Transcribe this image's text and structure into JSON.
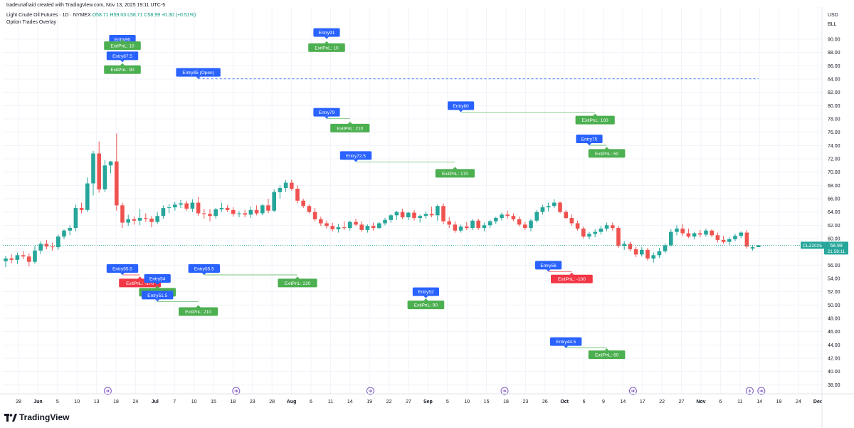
{
  "header": {
    "credit": "tradeunafraid created with TradingView.com, Nov 13, 2025 19:11 UTC-5",
    "symbol_desc": "Light Crude Oil Futures · 1D · NYMEX",
    "ohlc": {
      "o": "O58.71",
      "h": "H59.03",
      "l": "L58.71",
      "c": "C58.99",
      "chg": "+0.30 (+0.51%)"
    },
    "overlay_title": "Option Trades Overlay"
  },
  "axis": {
    "currency": "USD",
    "unit": "BLL",
    "y_ticks": [
      "90.00",
      "88.00",
      "86.00",
      "84.00",
      "82.00",
      "80.00",
      "78.00",
      "76.00",
      "74.00",
      "72.00",
      "70.00",
      "68.00",
      "66.00",
      "64.00",
      "62.00",
      "60.00",
      "58.00",
      "56.00",
      "54.00",
      "52.00",
      "50.00",
      "48.00",
      "46.00",
      "44.00",
      "42.00",
      "40.00",
      "38.00"
    ],
    "x_ticks": [
      "28",
      "Jun",
      "5",
      "10",
      "13",
      "18",
      "24",
      "Jul",
      "7",
      "10",
      "15",
      "18",
      "23",
      "28",
      "Aug",
      "6",
      "11",
      "14",
      "19",
      "22",
      "27",
      "Sep",
      "5",
      "10",
      "15",
      "18",
      "23",
      "26",
      "Oct",
      "6",
      "9",
      "14",
      "17",
      "22",
      "27",
      "Nov",
      "6",
      "11",
      "14",
      "19",
      "24",
      "Dec"
    ]
  },
  "price_badge": {
    "symbol": "CLZ2025",
    "price": "58.99",
    "countdown": "21:58:11"
  },
  "colors": {
    "up": "#26a69a",
    "down": "#ef5350",
    "entry": "#2962ff",
    "exit_win": "#4caf50",
    "exit_loss": "#f23645",
    "event": "#7e57c2"
  },
  "chart_data": {
    "type": "candlestick",
    "ylim": [
      37,
      92
    ],
    "last_price": 58.99,
    "candles": [
      {
        "o": 56.6,
        "h": 57.4,
        "l": 55.7,
        "c": 57.0
      },
      {
        "o": 57.0,
        "h": 57.6,
        "l": 56.3,
        "c": 56.8
      },
      {
        "o": 56.8,
        "h": 57.9,
        "l": 56.2,
        "c": 57.5
      },
      {
        "o": 57.5,
        "h": 58.1,
        "l": 56.9,
        "c": 57.3
      },
      {
        "o": 57.3,
        "h": 57.8,
        "l": 55.8,
        "c": 56.5
      },
      {
        "o": 56.5,
        "h": 58.9,
        "l": 56.2,
        "c": 58.2
      },
      {
        "o": 58.2,
        "h": 59.6,
        "l": 57.7,
        "c": 59.2
      },
      {
        "o": 59.2,
        "h": 59.8,
        "l": 58.4,
        "c": 58.8
      },
      {
        "o": 58.8,
        "h": 59.4,
        "l": 58.2,
        "c": 58.7
      },
      {
        "o": 58.7,
        "h": 60.6,
        "l": 58.3,
        "c": 60.3
      },
      {
        "o": 60.3,
        "h": 61.4,
        "l": 59.9,
        "c": 61.2
      },
      {
        "o": 61.2,
        "h": 62.0,
        "l": 60.5,
        "c": 61.6
      },
      {
        "o": 61.6,
        "h": 65.1,
        "l": 61.1,
        "c": 64.6
      },
      {
        "o": 64.6,
        "h": 65.4,
        "l": 63.8,
        "c": 64.3
      },
      {
        "o": 64.3,
        "h": 69.2,
        "l": 64.0,
        "c": 68.3
      },
      {
        "o": 68.3,
        "h": 73.2,
        "l": 66.5,
        "c": 72.8
      },
      {
        "o": 72.8,
        "h": 74.6,
        "l": 66.9,
        "c": 67.4
      },
      {
        "o": 67.4,
        "h": 71.8,
        "l": 67.0,
        "c": 71.0
      },
      {
        "o": 71.0,
        "h": 71.7,
        "l": 69.8,
        "c": 71.6
      },
      {
        "o": 71.6,
        "h": 75.8,
        "l": 64.2,
        "c": 65.0
      },
      {
        "o": 65.0,
        "h": 65.4,
        "l": 61.6,
        "c": 62.4
      },
      {
        "o": 62.4,
        "h": 63.6,
        "l": 61.9,
        "c": 62.9
      },
      {
        "o": 62.9,
        "h": 63.3,
        "l": 62.1,
        "c": 62.7
      },
      {
        "o": 62.7,
        "h": 64.5,
        "l": 62.0,
        "c": 63.1
      },
      {
        "o": 63.1,
        "h": 63.8,
        "l": 62.5,
        "c": 63.0
      },
      {
        "o": 63.0,
        "h": 63.4,
        "l": 61.7,
        "c": 62.5
      },
      {
        "o": 62.5,
        "h": 64.0,
        "l": 62.2,
        "c": 63.4
      },
      {
        "o": 63.4,
        "h": 65.0,
        "l": 63.0,
        "c": 64.6
      },
      {
        "o": 64.6,
        "h": 65.2,
        "l": 63.8,
        "c": 64.7
      },
      {
        "o": 64.7,
        "h": 65.5,
        "l": 64.2,
        "c": 65.1
      },
      {
        "o": 65.1,
        "h": 65.8,
        "l": 64.6,
        "c": 65.3
      },
      {
        "o": 65.3,
        "h": 65.7,
        "l": 64.2,
        "c": 64.5
      },
      {
        "o": 64.5,
        "h": 65.9,
        "l": 64.0,
        "c": 65.4
      },
      {
        "o": 65.4,
        "h": 66.3,
        "l": 63.4,
        "c": 63.8
      },
      {
        "o": 63.8,
        "h": 64.5,
        "l": 63.0,
        "c": 63.7
      },
      {
        "o": 63.7,
        "h": 64.4,
        "l": 62.6,
        "c": 63.4
      },
      {
        "o": 63.4,
        "h": 64.6,
        "l": 63.0,
        "c": 64.4
      },
      {
        "o": 64.4,
        "h": 65.4,
        "l": 64.0,
        "c": 64.6
      },
      {
        "o": 64.6,
        "h": 65.0,
        "l": 64.0,
        "c": 64.3
      },
      {
        "o": 64.3,
        "h": 64.7,
        "l": 63.3,
        "c": 63.7
      },
      {
        "o": 63.7,
        "h": 64.1,
        "l": 63.2,
        "c": 63.8
      },
      {
        "o": 63.8,
        "h": 64.3,
        "l": 63.2,
        "c": 63.6
      },
      {
        "o": 63.6,
        "h": 64.8,
        "l": 63.1,
        "c": 64.3
      },
      {
        "o": 64.3,
        "h": 65.0,
        "l": 63.5,
        "c": 63.8
      },
      {
        "o": 63.8,
        "h": 65.2,
        "l": 63.5,
        "c": 65.0
      },
      {
        "o": 65.0,
        "h": 66.0,
        "l": 63.8,
        "c": 64.2
      },
      {
        "o": 64.2,
        "h": 67.4,
        "l": 64.0,
        "c": 67.0
      },
      {
        "o": 67.0,
        "h": 68.0,
        "l": 66.0,
        "c": 67.6
      },
      {
        "o": 67.6,
        "h": 68.8,
        "l": 67.0,
        "c": 68.4
      },
      {
        "o": 68.4,
        "h": 68.9,
        "l": 67.2,
        "c": 67.5
      },
      {
        "o": 67.5,
        "h": 68.0,
        "l": 65.3,
        "c": 65.7
      },
      {
        "o": 65.7,
        "h": 66.0,
        "l": 64.6,
        "c": 64.9
      },
      {
        "o": 64.9,
        "h": 65.1,
        "l": 63.8,
        "c": 64.0
      },
      {
        "o": 64.0,
        "h": 64.6,
        "l": 62.6,
        "c": 62.9
      },
      {
        "o": 62.9,
        "h": 63.3,
        "l": 61.9,
        "c": 62.3
      },
      {
        "o": 62.3,
        "h": 62.7,
        "l": 61.5,
        "c": 61.9
      },
      {
        "o": 61.9,
        "h": 62.4,
        "l": 61.1,
        "c": 61.4
      },
      {
        "o": 61.4,
        "h": 62.2,
        "l": 60.9,
        "c": 61.7
      },
      {
        "o": 61.7,
        "h": 62.6,
        "l": 61.3,
        "c": 61.6
      },
      {
        "o": 61.6,
        "h": 62.7,
        "l": 61.2,
        "c": 62.5
      },
      {
        "o": 62.5,
        "h": 63.0,
        "l": 61.9,
        "c": 62.1
      },
      {
        "o": 62.1,
        "h": 62.6,
        "l": 61.0,
        "c": 61.3
      },
      {
        "o": 61.3,
        "h": 62.1,
        "l": 60.9,
        "c": 61.9
      },
      {
        "o": 61.9,
        "h": 62.4,
        "l": 61.2,
        "c": 61.6
      },
      {
        "o": 61.6,
        "h": 62.5,
        "l": 61.4,
        "c": 62.3
      },
      {
        "o": 62.3,
        "h": 63.1,
        "l": 62.0,
        "c": 62.8
      },
      {
        "o": 62.8,
        "h": 63.7,
        "l": 62.4,
        "c": 63.5
      },
      {
        "o": 63.5,
        "h": 64.2,
        "l": 62.8,
        "c": 64.0
      },
      {
        "o": 64.0,
        "h": 64.5,
        "l": 62.9,
        "c": 63.2
      },
      {
        "o": 63.2,
        "h": 64.0,
        "l": 62.8,
        "c": 63.9
      },
      {
        "o": 63.9,
        "h": 64.3,
        "l": 62.7,
        "c": 63.1
      },
      {
        "o": 63.1,
        "h": 63.6,
        "l": 62.4,
        "c": 63.4
      },
      {
        "o": 63.4,
        "h": 64.1,
        "l": 63.0,
        "c": 63.7
      },
      {
        "o": 63.7,
        "h": 64.8,
        "l": 63.2,
        "c": 63.5
      },
      {
        "o": 63.5,
        "h": 65.1,
        "l": 62.7,
        "c": 64.9
      },
      {
        "o": 64.9,
        "h": 65.3,
        "l": 62.2,
        "c": 62.6
      },
      {
        "o": 62.6,
        "h": 63.2,
        "l": 61.6,
        "c": 62.1
      },
      {
        "o": 62.1,
        "h": 62.6,
        "l": 60.9,
        "c": 61.2
      },
      {
        "o": 61.2,
        "h": 62.1,
        "l": 60.9,
        "c": 61.8
      },
      {
        "o": 61.8,
        "h": 62.5,
        "l": 61.3,
        "c": 61.6
      },
      {
        "o": 61.6,
        "h": 62.9,
        "l": 61.3,
        "c": 62.7
      },
      {
        "o": 62.7,
        "h": 63.0,
        "l": 61.3,
        "c": 61.6
      },
      {
        "o": 61.6,
        "h": 62.4,
        "l": 61.1,
        "c": 62.0
      },
      {
        "o": 62.0,
        "h": 62.8,
        "l": 61.6,
        "c": 62.6
      },
      {
        "o": 62.6,
        "h": 63.3,
        "l": 62.2,
        "c": 63.1
      },
      {
        "o": 63.1,
        "h": 63.9,
        "l": 62.7,
        "c": 63.6
      },
      {
        "o": 63.6,
        "h": 64.2,
        "l": 63.0,
        "c": 63.4
      },
      {
        "o": 63.4,
        "h": 63.8,
        "l": 62.6,
        "c": 62.9
      },
      {
        "o": 62.9,
        "h": 63.3,
        "l": 61.8,
        "c": 62.1
      },
      {
        "o": 62.1,
        "h": 62.5,
        "l": 61.3,
        "c": 61.6
      },
      {
        "o": 61.6,
        "h": 63.0,
        "l": 61.1,
        "c": 62.7
      },
      {
        "o": 62.7,
        "h": 64.3,
        "l": 62.4,
        "c": 64.0
      },
      {
        "o": 64.0,
        "h": 65.1,
        "l": 63.6,
        "c": 64.7
      },
      {
        "o": 64.7,
        "h": 65.4,
        "l": 64.1,
        "c": 64.9
      },
      {
        "o": 64.9,
        "h": 65.9,
        "l": 64.6,
        "c": 65.4
      },
      {
        "o": 65.4,
        "h": 65.6,
        "l": 63.8,
        "c": 64.0
      },
      {
        "o": 64.0,
        "h": 64.3,
        "l": 62.9,
        "c": 63.1
      },
      {
        "o": 63.1,
        "h": 63.6,
        "l": 61.9,
        "c": 62.3
      },
      {
        "o": 62.3,
        "h": 62.7,
        "l": 61.2,
        "c": 61.5
      },
      {
        "o": 61.5,
        "h": 61.8,
        "l": 60.0,
        "c": 60.3
      },
      {
        "o": 60.3,
        "h": 61.0,
        "l": 59.9,
        "c": 60.7
      },
      {
        "o": 60.7,
        "h": 61.4,
        "l": 60.2,
        "c": 61.0
      },
      {
        "o": 61.0,
        "h": 61.9,
        "l": 60.6,
        "c": 61.5
      },
      {
        "o": 61.5,
        "h": 62.4,
        "l": 61.1,
        "c": 62.0
      },
      {
        "o": 62.0,
        "h": 62.4,
        "l": 61.2,
        "c": 61.6
      },
      {
        "o": 61.6,
        "h": 61.9,
        "l": 58.6,
        "c": 58.9
      },
      {
        "o": 58.9,
        "h": 59.6,
        "l": 58.3,
        "c": 59.2
      },
      {
        "o": 59.2,
        "h": 59.5,
        "l": 58.1,
        "c": 58.4
      },
      {
        "o": 58.4,
        "h": 58.8,
        "l": 57.2,
        "c": 57.6
      },
      {
        "o": 57.6,
        "h": 58.7,
        "l": 57.3,
        "c": 58.3
      },
      {
        "o": 58.3,
        "h": 58.6,
        "l": 56.7,
        "c": 57.0
      },
      {
        "o": 57.0,
        "h": 57.9,
        "l": 56.4,
        "c": 57.5
      },
      {
        "o": 57.5,
        "h": 58.6,
        "l": 57.1,
        "c": 58.1
      },
      {
        "o": 58.1,
        "h": 59.3,
        "l": 57.8,
        "c": 59.0
      },
      {
        "o": 59.0,
        "h": 61.4,
        "l": 58.8,
        "c": 61.0
      },
      {
        "o": 61.0,
        "h": 62.0,
        "l": 60.5,
        "c": 61.5
      },
      {
        "o": 61.5,
        "h": 62.2,
        "l": 60.4,
        "c": 60.8
      },
      {
        "o": 60.8,
        "h": 61.5,
        "l": 60.1,
        "c": 60.3
      },
      {
        "o": 60.3,
        "h": 61.0,
        "l": 59.9,
        "c": 60.8
      },
      {
        "o": 60.8,
        "h": 61.3,
        "l": 60.2,
        "c": 60.6
      },
      {
        "o": 60.6,
        "h": 61.5,
        "l": 60.3,
        "c": 61.2
      },
      {
        "o": 61.2,
        "h": 61.4,
        "l": 60.2,
        "c": 60.5
      },
      {
        "o": 60.5,
        "h": 60.9,
        "l": 59.4,
        "c": 59.8
      },
      {
        "o": 59.8,
        "h": 60.4,
        "l": 59.2,
        "c": 59.5
      },
      {
        "o": 59.5,
        "h": 60.2,
        "l": 59.0,
        "c": 59.9
      },
      {
        "o": 59.9,
        "h": 60.7,
        "l": 59.6,
        "c": 60.4
      },
      {
        "o": 60.4,
        "h": 61.1,
        "l": 60.1,
        "c": 60.9
      },
      {
        "o": 60.9,
        "h": 61.3,
        "l": 58.5,
        "c": 58.8
      },
      {
        "o": 58.5,
        "h": 59.0,
        "l": 58.2,
        "c": 58.7
      },
      {
        "o": 58.71,
        "h": 59.03,
        "l": 58.71,
        "c": 58.99
      }
    ],
    "trades": [
      {
        "entry_label": "Entry90",
        "entry_price": 90,
        "entry_bar": 20,
        "exit_label": "ExitPnL: 10",
        "exit_price": 90.2,
        "exit_bar": 20,
        "outcome": "win"
      },
      {
        "entry_label": "Entry87.5",
        "entry_price": 87.5,
        "entry_bar": 20,
        "exit_label": "ExitPnL: 90",
        "exit_price": 86.6,
        "exit_bar": 20,
        "outcome": "win"
      },
      {
        "entry_label": "Entry85 (Open)",
        "entry_price": 85,
        "entry_bar": 33,
        "exit_label": "",
        "exit_price": 85,
        "exit_bar": 129,
        "outcome": "open"
      },
      {
        "entry_label": "Entry91",
        "entry_price": 91,
        "entry_bar": 55,
        "exit_label": "ExitPnL: 10",
        "exit_price": 89.9,
        "exit_bar": 55,
        "outcome": "win"
      },
      {
        "entry_label": "Entry79",
        "entry_price": 79,
        "entry_bar": 55,
        "exit_label": "ExitPnL: 210",
        "exit_price": 77.8,
        "exit_bar": 59,
        "outcome": "win"
      },
      {
        "entry_label": "Entry80",
        "entry_price": 80,
        "entry_bar": 78,
        "exit_label": "ExitPnL: 100",
        "exit_price": 79,
        "exit_bar": 101,
        "outcome": "win"
      },
      {
        "entry_label": "Entry75",
        "entry_price": 75,
        "entry_bar": 100,
        "exit_label": "ExitPnL: 60",
        "exit_price": 74,
        "exit_bar": 103,
        "outcome": "win"
      },
      {
        "entry_label": "Entry72.5",
        "entry_price": 72.5,
        "entry_bar": 60,
        "exit_label": "ExitPnL: 170",
        "exit_price": 71,
        "exit_bar": 77,
        "outcome": "win"
      },
      {
        "entry_label": "Entry55.5",
        "entry_price": 55.5,
        "entry_bar": 20,
        "exit_label": "ExitPnL: -170",
        "exit_price": 54.5,
        "exit_bar": 23,
        "outcome": "loss"
      },
      {
        "entry_label": "Entry54",
        "entry_price": 54,
        "entry_bar": 26,
        "exit_label": "ExitPnL: 80",
        "exit_price": 53.1,
        "exit_bar": 26,
        "outcome": "win"
      },
      {
        "entry_label": "Entry51.5",
        "entry_price": 51.5,
        "entry_bar": 26,
        "exit_label": "ExitPnL: 210",
        "exit_price": 50.2,
        "exit_bar": 33,
        "outcome": "win"
      },
      {
        "entry_label": "Entry55.5",
        "entry_price": 55.5,
        "entry_bar": 34,
        "exit_label": "ExitPnL: 220",
        "exit_price": 54.5,
        "exit_bar": 50,
        "outcome": "win"
      },
      {
        "entry_label": "Entry52",
        "entry_price": 52,
        "entry_bar": 72,
        "exit_label": "ExitPnL: 90",
        "exit_price": 51.2,
        "exit_bar": 72,
        "outcome": "win"
      },
      {
        "entry_label": "Entry56",
        "entry_price": 56,
        "entry_bar": 93,
        "exit_label": "ExitPnL: -100",
        "exit_price": 55.1,
        "exit_bar": 97,
        "outcome": "loss"
      },
      {
        "entry_label": "Entry44.5",
        "entry_price": 44.5,
        "entry_bar": 96,
        "exit_label": "ExitPnL: 60",
        "exit_price": 43.7,
        "exit_bar": 103,
        "outcome": "win"
      }
    ],
    "events": [
      {
        "bar": 17,
        "icon": "earnings-arrow-icon"
      },
      {
        "bar": 39,
        "icon": "earnings-arrow-icon"
      },
      {
        "bar": 62,
        "icon": "earnings-arrow-icon"
      },
      {
        "bar": 85,
        "icon": "earnings-arrow-icon"
      },
      {
        "bar": 107,
        "icon": "earnings-arrow-icon"
      },
      {
        "bar": 127,
        "icon": "dividend-bolt-icon"
      },
      {
        "bar": 129,
        "icon": "earnings-arrow-icon"
      }
    ]
  }
}
